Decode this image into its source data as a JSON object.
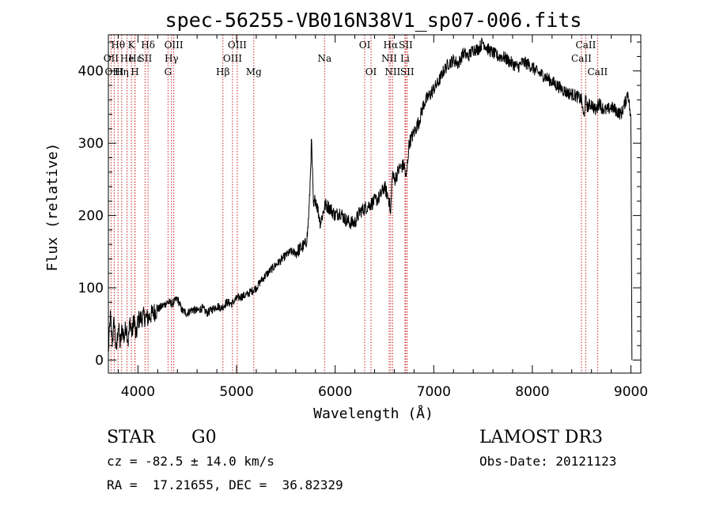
{
  "chart_data": {
    "type": "line",
    "title": "spec-56255-VB016N38V1_sp07-006.fits",
    "xlabel": "Wavelength (Å)",
    "ylabel": "Flux (relative)",
    "xlim": [
      3700,
      9100
    ],
    "ylim": [
      -18,
      450
    ],
    "x_ticks": [
      4000,
      5000,
      6000,
      7000,
      8000,
      9000
    ],
    "y_ticks": [
      0,
      100,
      200,
      300,
      400
    ],
    "grid": false,
    "series": [
      {
        "name": "spectrum",
        "x": [
          3700,
          3720,
          3740,
          3760,
          3780,
          3800,
          3820,
          3840,
          3860,
          3880,
          3900,
          3920,
          3940,
          3960,
          3980,
          4000,
          4050,
          4100,
          4150,
          4200,
          4250,
          4300,
          4350,
          4400,
          4450,
          4500,
          4550,
          4600,
          4650,
          4700,
          4750,
          4800,
          4850,
          4900,
          4950,
          5000,
          5050,
          5100,
          5150,
          5200,
          5250,
          5300,
          5350,
          5400,
          5450,
          5500,
          5550,
          5600,
          5650,
          5700,
          5720,
          5740,
          5760,
          5780,
          5800,
          5850,
          5900,
          5950,
          6000,
          6050,
          6100,
          6150,
          6200,
          6250,
          6300,
          6350,
          6400,
          6450,
          6500,
          6550,
          6563,
          6580,
          6600,
          6650,
          6700,
          6720,
          6750,
          6800,
          6850,
          6900,
          6950,
          7000,
          7050,
          7100,
          7150,
          7200,
          7250,
          7300,
          7350,
          7400,
          7450,
          7500,
          7550,
          7600,
          7650,
          7700,
          7750,
          7800,
          7850,
          7900,
          7950,
          8000,
          8050,
          8100,
          8150,
          8200,
          8250,
          8300,
          8350,
          8400,
          8450,
          8500,
          8520,
          8540,
          8560,
          8600,
          8640,
          8660,
          8680,
          8700,
          8750,
          8800,
          8850,
          8900,
          8950,
          8970,
          9000,
          9010
        ],
        "y": [
          10,
          60,
          25,
          55,
          8,
          50,
          20,
          45,
          30,
          50,
          25,
          55,
          35,
          60,
          30,
          55,
          60,
          58,
          65,
          70,
          75,
          80,
          78,
          85,
          68,
          65,
          70,
          68,
          72,
          65,
          70,
          75,
          72,
          80,
          78,
          85,
          88,
          90,
          95,
          100,
          110,
          118,
          125,
          132,
          138,
          145,
          150,
          148,
          155,
          160,
          175,
          220,
          305,
          210,
          225,
          190,
          215,
          210,
          200,
          205,
          195,
          190,
          190,
          205,
          210,
          215,
          220,
          225,
          240,
          220,
          200,
          260,
          248,
          265,
          270,
          250,
          300,
          315,
          330,
          355,
          365,
          375,
          385,
          400,
          410,
          415,
          410,
          425,
          420,
          430,
          430,
          440,
          430,
          425,
          420,
          420,
          415,
          410,
          405,
          412,
          410,
          405,
          398,
          395,
          390,
          385,
          380,
          375,
          370,
          368,
          365,
          360,
          335,
          360,
          350,
          355,
          345,
          350,
          358,
          350,
          345,
          350,
          345,
          340,
          360,
          372,
          330,
          0
        ]
      }
    ],
    "lines": [
      {
        "label": "Hθ",
        "x": 3798,
        "row": 0
      },
      {
        "label": "OII",
        "x": 3727,
        "row": 1
      },
      {
        "label": "OIII",
        "x": 3760,
        "row": 2
      },
      {
        "label": "Hη",
        "x": 3835,
        "row": 2
      },
      {
        "label": "He",
        "x": 3889,
        "row": 1
      },
      {
        "label": "K",
        "x": 3934,
        "row": 0
      },
      {
        "label": "H",
        "x": 3969,
        "row": 2
      },
      {
        "label": "Hε",
        "x": 3970,
        "row": 1
      },
      {
        "label": "SII",
        "x": 4072,
        "row": 1
      },
      {
        "label": "Hδ",
        "x": 4102,
        "row": 0
      },
      {
        "label": "OIII",
        "x": 4363,
        "row": 0
      },
      {
        "label": "Hγ",
        "x": 4340,
        "row": 1
      },
      {
        "label": "G",
        "x": 4305,
        "row": 2
      },
      {
        "label": "Hβ",
        "x": 4861,
        "row": 2
      },
      {
        "label": "OIII",
        "x": 5007,
        "row": 0
      },
      {
        "label": "OIII",
        "x": 4959,
        "row": 1
      },
      {
        "label": "Mg",
        "x": 5175,
        "row": 2
      },
      {
        "label": "Na",
        "x": 5893,
        "row": 1
      },
      {
        "label": "OI",
        "x": 6300,
        "row": 0
      },
      {
        "label": "OI",
        "x": 6364,
        "row": 2
      },
      {
        "label": "Hα",
        "x": 6563,
        "row": 0
      },
      {
        "label": "NII",
        "x": 6548,
        "row": 1
      },
      {
        "label": "NII",
        "x": 6583,
        "row": 2
      },
      {
        "label": "SII",
        "x": 6716,
        "row": 0
      },
      {
        "label": "Li",
        "x": 6708,
        "row": 1
      },
      {
        "label": "SII",
        "x": 6731,
        "row": 2
      },
      {
        "label": "CaII",
        "x": 8542,
        "row": 0
      },
      {
        "label": "CaII",
        "x": 8498,
        "row": 1
      },
      {
        "label": "CaII",
        "x": 8662,
        "row": 2
      }
    ]
  },
  "info": {
    "object_class": "STAR",
    "subclass": "G0",
    "survey": "LAMOST DR3",
    "redshift": "cz = -82.5 ± 14.0 km/s",
    "obs_date": "Obs-Date: 20121123",
    "coords": "RA =  17.21655, DEC =  36.82329"
  },
  "colors": {
    "line_marker": "#cc2222",
    "spectrum": "#000000"
  }
}
